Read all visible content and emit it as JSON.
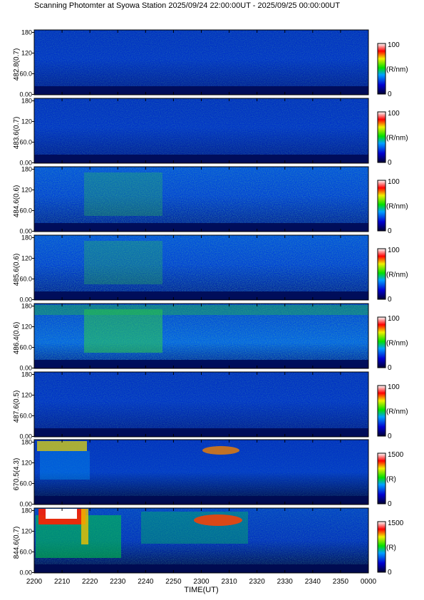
{
  "title": "Scanning Photomter at Syowa Station 2025/09/24 22:00:00UT - 2025/09/25 00:00:00UT",
  "chart_data": [
    {
      "type": "heatmap",
      "ylabel": "482.8(0.7)",
      "yticks": [
        "0.00",
        "60.0",
        "120",
        "180"
      ],
      "ylim": [
        0,
        180
      ],
      "colorbar": {
        "label": "(R/nm)",
        "min": "0",
        "max": "100"
      },
      "intensity": "low"
    },
    {
      "type": "heatmap",
      "ylabel": "483.6(0.7)",
      "yticks": [
        "0.00",
        "60.0",
        "120",
        "180"
      ],
      "ylim": [
        0,
        180
      ],
      "colorbar": {
        "label": "(R/nm)",
        "min": "0",
        "max": "100"
      },
      "intensity": "low"
    },
    {
      "type": "heatmap",
      "ylabel": "484.6(0.6)",
      "yticks": [
        "0.00",
        "60.0",
        "120",
        "180"
      ],
      "ylim": [
        0,
        180
      ],
      "colorbar": {
        "label": "(R/nm)",
        "min": "0",
        "max": "100"
      },
      "intensity": "medium"
    },
    {
      "type": "heatmap",
      "ylabel": "485.6(0.6)",
      "yticks": [
        "0.00",
        "60.0",
        "120",
        "180"
      ],
      "ylim": [
        0,
        180
      ],
      "colorbar": {
        "label": "(R/nm)",
        "min": "0",
        "max": "100"
      },
      "intensity": "medium"
    },
    {
      "type": "heatmap",
      "ylabel": "486.4(0.6)",
      "yticks": [
        "0.00",
        "60.0",
        "120",
        "180"
      ],
      "ylim": [
        0,
        180
      ],
      "colorbar": {
        "label": "(R/nm)",
        "min": "0",
        "max": "100"
      },
      "intensity": "high"
    },
    {
      "type": "heatmap",
      "ylabel": "487.6(0.5)",
      "yticks": [
        "0.00",
        "60.0",
        "120",
        "180"
      ],
      "ylim": [
        0,
        180
      ],
      "colorbar": {
        "label": "(R/nm)",
        "min": "0",
        "max": "100"
      },
      "intensity": "low"
    },
    {
      "type": "heatmap",
      "ylabel": "670.5(4.3)",
      "yticks": [
        "0.00",
        "60.0",
        "120",
        "180"
      ],
      "ylim": [
        0,
        180
      ],
      "colorbar": {
        "label": "(R)",
        "min": "0",
        "max": "1500"
      },
      "intensity": "aurora-weak"
    },
    {
      "type": "heatmap",
      "ylabel": "844.6(0.7)",
      "yticks": [
        "0.00",
        "60.0",
        "120",
        "180"
      ],
      "ylim": [
        0,
        180
      ],
      "colorbar": {
        "label": "(R)",
        "min": "0",
        "max": "1500"
      },
      "intensity": "aurora-strong"
    }
  ],
  "x_axis": {
    "label": "TIME(UT)",
    "ticks": [
      "2200",
      "2210",
      "2220",
      "2230",
      "2240",
      "2250",
      "2300",
      "2310",
      "2320",
      "2330",
      "2340",
      "2350",
      "0000"
    ]
  }
}
